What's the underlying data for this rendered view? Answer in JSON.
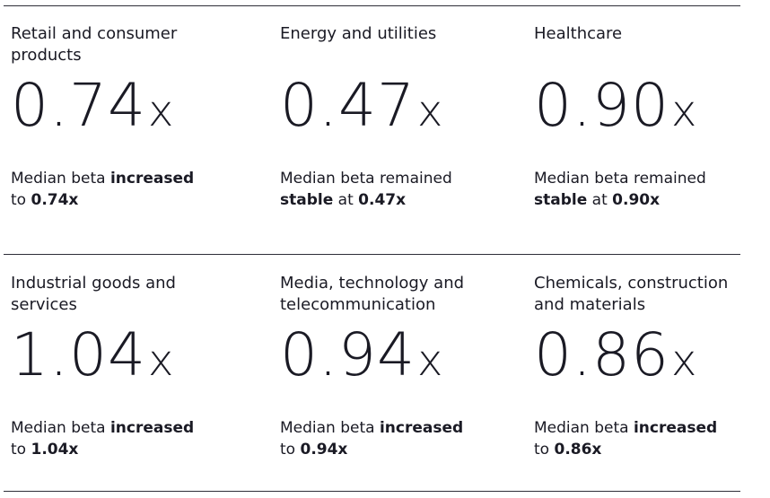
{
  "cards": [
    {
      "title": "Retail and consumer products",
      "value": "0.74",
      "unit": "x",
      "description": [
        {
          "text": "Median beta",
          "bold": false
        },
        {
          "text": "increased",
          "bold": true
        },
        {
          "text": "to",
          "bold": false
        },
        {
          "text": "0.74x",
          "bold": true
        }
      ]
    },
    {
      "title": "Energy and utilities",
      "value": "0.47",
      "unit": "x",
      "description": [
        {
          "text": "Median beta remained",
          "bold": false
        },
        {
          "text": "stable",
          "bold": true
        },
        {
          "text": "at",
          "bold": false
        },
        {
          "text": "0.47x",
          "bold": true
        }
      ]
    },
    {
      "title": "Healthcare",
      "value": "0.90",
      "unit": "x",
      "description": [
        {
          "text": "Median beta remained",
          "bold": false
        },
        {
          "text": "stable",
          "bold": true
        },
        {
          "text": "at",
          "bold": false
        },
        {
          "text": "0.90x",
          "bold": true
        }
      ]
    },
    {
      "title": "Industrial goods and services",
      "value": "1.04",
      "unit": "x",
      "description": [
        {
          "text": "Median beta",
          "bold": false
        },
        {
          "text": "increased",
          "bold": true
        },
        {
          "text": "to",
          "bold": false
        },
        {
          "text": "1.04x",
          "bold": true
        }
      ]
    },
    {
      "title": "Media, technology and telecommunication",
      "value": "0.94",
      "unit": "x",
      "description": [
        {
          "text": "Median beta",
          "bold": false
        },
        {
          "text": "increased",
          "bold": true
        },
        {
          "text": "to",
          "bold": false
        },
        {
          "text": "0.94x",
          "bold": true
        }
      ]
    },
    {
      "title": "Chemicals, construction and materials",
      "value": "0.86",
      "unit": "x",
      "description": [
        {
          "text": "Median beta",
          "bold": false
        },
        {
          "text": "increased",
          "bold": true
        },
        {
          "text": "to",
          "bold": false
        },
        {
          "text": "0.86x",
          "bold": true
        }
      ]
    }
  ]
}
